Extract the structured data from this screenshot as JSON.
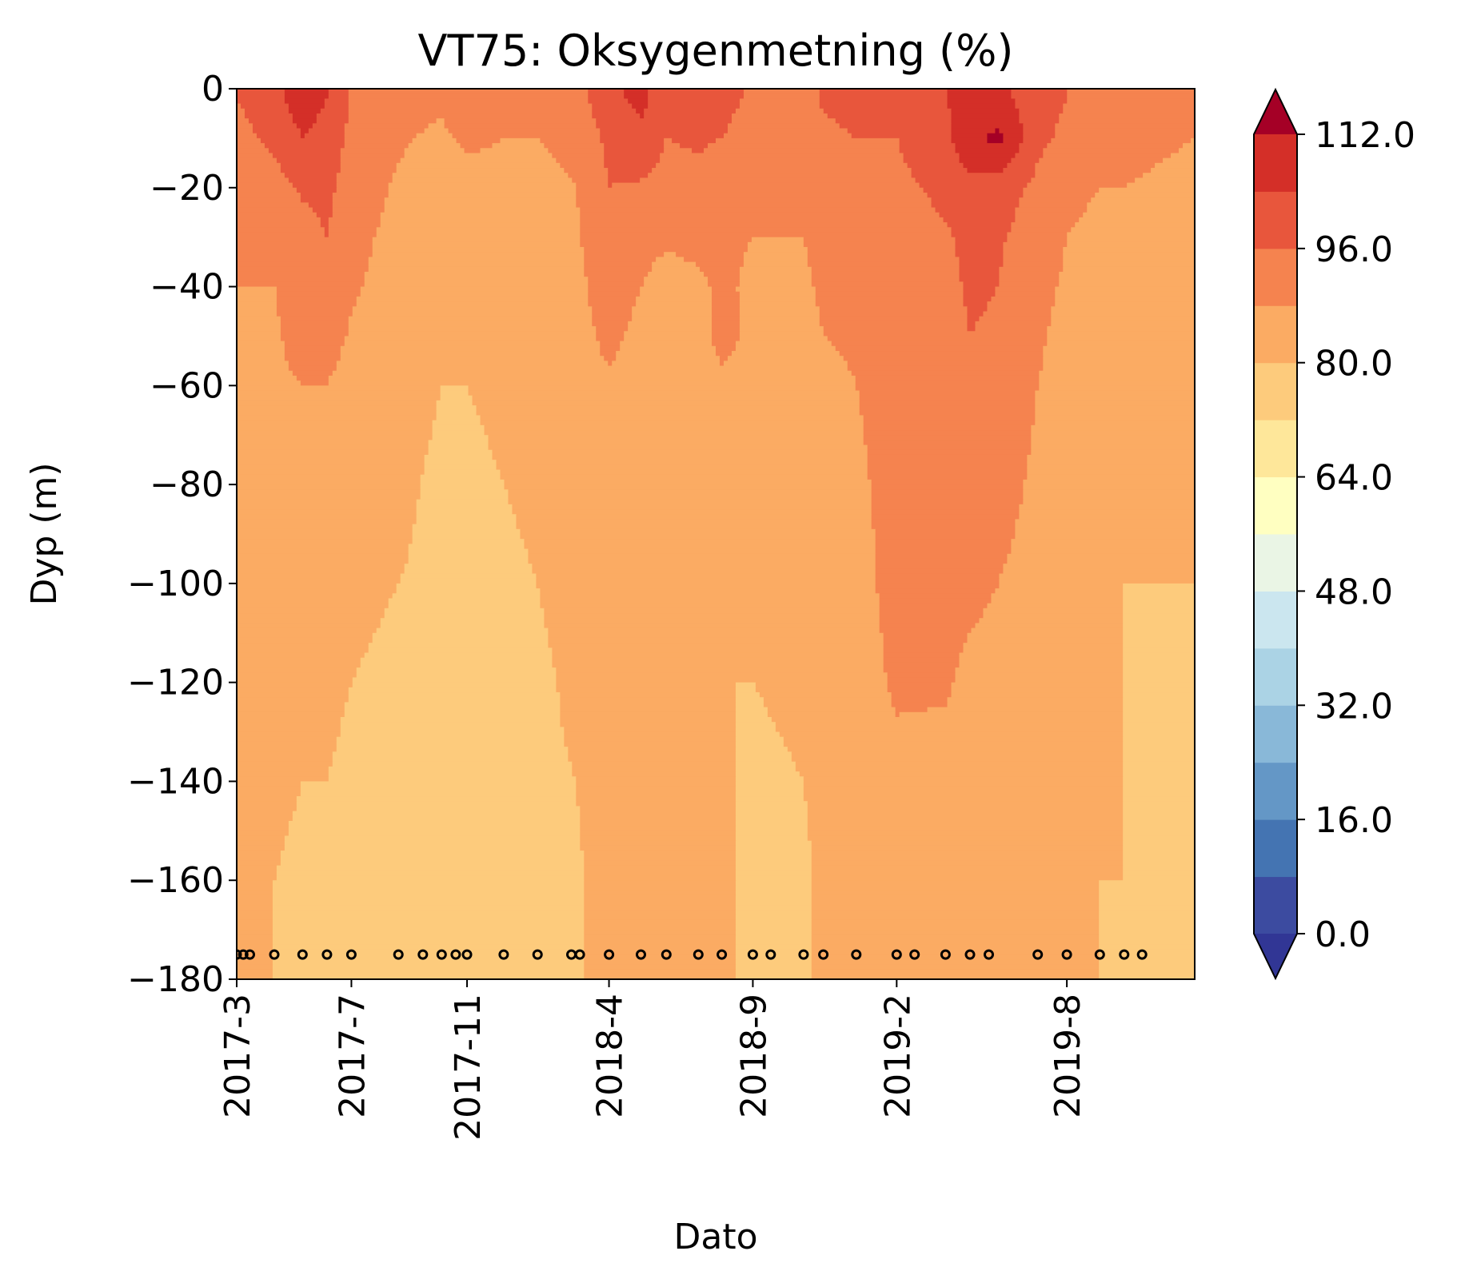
{
  "chart_data": {
    "type": "contour",
    "title": "VT75: Oksygenmetning (%)",
    "xlabel": "Dato",
    "ylabel": "Dyp (m)",
    "ylim": [
      -180,
      0
    ],
    "y_ticks": [
      0,
      -20,
      -40,
      -60,
      -80,
      -100,
      -120,
      -140,
      -160,
      -180
    ],
    "y_tick_labels": [
      "0",
      "−20",
      "−40",
      "−60",
      "−80",
      "−100",
      "−120",
      "−140",
      "−160",
      "−180"
    ],
    "x_range": [
      "2017-03-01",
      "2019-12-15"
    ],
    "x_ticks": [
      "2017-03-01",
      "2017-07-01",
      "2017-11-01",
      "2018-04-01",
      "2018-09-01",
      "2019-02-01",
      "2019-08-01"
    ],
    "x_tick_labels": [
      "2017-3",
      "2017-7",
      "2017-11",
      "2018-4",
      "2018-9",
      "2019-2",
      "2019-8"
    ],
    "colorbar": {
      "levels": [
        0,
        8,
        16,
        24,
        32,
        40,
        48,
        56,
        64,
        72,
        80,
        88,
        96,
        104,
        112
      ],
      "tick_values": [
        0,
        16,
        32,
        48,
        64,
        80,
        96,
        112
      ],
      "tick_labels": [
        "0.0",
        "16.0",
        "32.0",
        "48.0",
        "64.0",
        "80.0",
        "96.0",
        "112.0"
      ],
      "colors": [
        "#3c4ba0",
        "#4474b2",
        "#6497c6",
        "#89b8d8",
        "#abd3e5",
        "#cbe6ef",
        "#eaf5e5",
        "#ffffc1",
        "#fee79a",
        "#fdcb7c",
        "#fbab63",
        "#f5834f",
        "#e8563c",
        "#d42f28"
      ],
      "under_color": "#313695",
      "over_color": "#a50026",
      "extend": "both"
    },
    "sample_dates": [
      "2017-03-01",
      "2017-03-08",
      "2017-03-15",
      "2017-04-10",
      "2017-05-10",
      "2017-06-05",
      "2017-07-01",
      "2017-08-20",
      "2017-09-15",
      "2017-10-05",
      "2017-10-20",
      "2017-11-01",
      "2017-12-10",
      "2018-01-15",
      "2018-02-20",
      "2018-03-01",
      "2018-04-01",
      "2018-05-05",
      "2018-06-01",
      "2018-07-05",
      "2018-07-30",
      "2018-09-01",
      "2018-09-20",
      "2018-10-25",
      "2018-11-15",
      "2018-12-20",
      "2019-02-01",
      "2019-02-20",
      "2019-03-25",
      "2019-04-20",
      "2019-05-10",
      "2019-07-01",
      "2019-08-01",
      "2019-09-05",
      "2019-10-01",
      "2019-10-20"
    ],
    "sample_depth": -175,
    "field_note_marker": "black open circles at each profile date",
    "contour_grid": {
      "dates": [
        "2017-03-01",
        "2017-04-10",
        "2017-05-10",
        "2017-06-05",
        "2017-07-01",
        "2017-08-20",
        "2017-10-05",
        "2017-11-01",
        "2017-12-10",
        "2018-01-15",
        "2018-02-25",
        "2018-04-01",
        "2018-05-05",
        "2018-06-01",
        "2018-07-05",
        "2018-07-30",
        "2018-09-01",
        "2018-10-25",
        "2018-11-15",
        "2018-12-20",
        "2019-02-01",
        "2019-03-25",
        "2019-04-20",
        "2019-05-20",
        "2019-07-01",
        "2019-08-01",
        "2019-09-05",
        "2019-10-01",
        "2019-12-15"
      ],
      "depths": [
        -2,
        -10,
        -20,
        -30,
        -40,
        -50,
        -60,
        -80,
        -100,
        -120,
        -140,
        -160,
        -178
      ],
      "values": [
        [
          96,
          102,
          108,
          104,
          95,
          92,
          90,
          96,
          92,
          91,
          92,
          102,
          106,
          100,
          98,
          98,
          95,
          93,
          97,
          99,
          98,
          104,
          106,
          106,
          100,
          96,
          94,
          92,
          90
        ],
        [
          93,
          98,
          104,
          101,
          94,
          89,
          86,
          90,
          88,
          88,
          90,
          98,
          102,
          96,
          97,
          96,
          93,
          91,
          94,
          96,
          96,
          102,
          110,
          114,
          98,
          94,
          91,
          90,
          88
        ],
        [
          91,
          93,
          97,
          98,
          92,
          87,
          84,
          84,
          85,
          86,
          88,
          96,
          95,
          93,
          94,
          92,
          90,
          89,
          92,
          94,
          94,
          98,
          102,
          100,
          94,
          90,
          88,
          88,
          86
        ],
        [
          89,
          90,
          93,
          96,
          90,
          86,
          83,
          83,
          84,
          85,
          87,
          94,
          92,
          90,
          91,
          90,
          88,
          88,
          90,
          92,
          92,
          95,
          98,
          97,
          92,
          88,
          86,
          86,
          85
        ],
        [
          88,
          88,
          95,
          94,
          89,
          85,
          82,
          82,
          83,
          84,
          86,
          92,
          88,
          83,
          86,
          90,
          86,
          87,
          89,
          90,
          91,
          94,
          97,
          96,
          90,
          87,
          85,
          85,
          84
        ],
        [
          86,
          86,
          94,
          92,
          87,
          84,
          81,
          81,
          82,
          83,
          85,
          90,
          86,
          80,
          83,
          92,
          85,
          86,
          88,
          89,
          90,
          93,
          96,
          95,
          89,
          86,
          84,
          84,
          83
        ],
        [
          85,
          85,
          88,
          88,
          84,
          82,
          80,
          80,
          81,
          82,
          84,
          87,
          84,
          81,
          82,
          85,
          84,
          84,
          86,
          88,
          90,
          92,
          94,
          92,
          88,
          85,
          83,
          83,
          82
        ],
        [
          84,
          84,
          82,
          83,
          82,
          81,
          79,
          79,
          80,
          81,
          83,
          86,
          82,
          83,
          82,
          83,
          82,
          83,
          85,
          87,
          90,
          91,
          92,
          90,
          87,
          84,
          82,
          81,
          81
        ],
        [
          83,
          83,
          82,
          82,
          81,
          80,
          79,
          78,
          79,
          80,
          82,
          85,
          82,
          82,
          80,
          82,
          81,
          82,
          84,
          86,
          90,
          91,
          90,
          88,
          86,
          83,
          81,
          80,
          80
        ],
        [
          82,
          82,
          81,
          81,
          80,
          79,
          78,
          78,
          78,
          79,
          81,
          84,
          82,
          82,
          81,
          80,
          80,
          81,
          83,
          85,
          89,
          89,
          86,
          85,
          84,
          82,
          81,
          80,
          79
        ],
        [
          82,
          81,
          80,
          80,
          79,
          79,
          78,
          77,
          78,
          79,
          80,
          84,
          81,
          82,
          82,
          81,
          79,
          80,
          82,
          84,
          86,
          85,
          84,
          84,
          83,
          82,
          81,
          80,
          80
        ],
        [
          81,
          80,
          79,
          79,
          78,
          78,
          77,
          77,
          77,
          78,
          79,
          83,
          81,
          82,
          82,
          82,
          78,
          79,
          81,
          83,
          84,
          84,
          83,
          83,
          82,
          81,
          80,
          80,
          79
        ],
        [
          80,
          80,
          79,
          78,
          78,
          77,
          77,
          77,
          77,
          78,
          79,
          83,
          81,
          82,
          82,
          82,
          78,
          79,
          81,
          82,
          83,
          83,
          83,
          82,
          82,
          81,
          80,
          79,
          79
        ]
      ]
    }
  }
}
